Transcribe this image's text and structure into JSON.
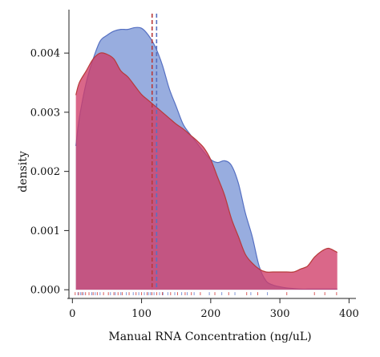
{
  "chart_data": {
    "type": "area",
    "title": "",
    "xlabel": "Manual RNA Concentration (ng/uL)",
    "ylabel": "density",
    "xlim": [
      -5,
      410
    ],
    "ylim": [
      -0.00012,
      0.00468
    ],
    "x_ticks": [
      0,
      100,
      200,
      300,
      400
    ],
    "x_tick_labels": [
      "0",
      "100",
      "200",
      "300",
      "400"
    ],
    "y_ticks": [
      0.0,
      0.001,
      0.002,
      0.003,
      0.004
    ],
    "y_tick_labels": [
      "0.000",
      "0.001",
      "0.002",
      "0.003",
      "0.004"
    ],
    "grid": false,
    "legend": "none",
    "series": [
      {
        "color_fill": "#8fa6dc",
        "color_line": "#5670c2",
        "x": [
          5,
          10,
          20,
          30,
          40,
          50,
          60,
          70,
          80,
          90,
          100,
          110,
          120,
          130,
          140,
          150,
          160,
          170,
          180,
          190,
          200,
          210,
          220,
          230,
          240,
          250,
          260,
          270,
          280,
          290,
          300,
          310,
          320,
          330,
          340,
          350,
          360,
          370,
          380,
          383
        ],
        "y": [
          0.00243,
          0.0029,
          0.0035,
          0.0039,
          0.0042,
          0.0043,
          0.00437,
          0.0044,
          0.0044,
          0.00443,
          0.00442,
          0.0043,
          0.0041,
          0.0038,
          0.0034,
          0.0031,
          0.0028,
          0.00263,
          0.00248,
          0.00233,
          0.0022,
          0.00215,
          0.00218,
          0.0021,
          0.0018,
          0.0013,
          0.0009,
          0.0004,
          0.00015,
          8e-05,
          5e-05,
          3e-05,
          2e-05,
          1e-05,
          1e-05,
          1e-05,
          1e-05,
          1e-05,
          1e-05,
          1e-05
        ],
        "mean": 120
      },
      {
        "color_fill": "#d03c68",
        "color_line": "#b83a3a",
        "x": [
          5,
          10,
          20,
          30,
          40,
          50,
          60,
          70,
          80,
          90,
          100,
          110,
          120,
          130,
          140,
          150,
          160,
          170,
          180,
          190,
          200,
          210,
          220,
          230,
          240,
          250,
          260,
          270,
          280,
          290,
          300,
          310,
          320,
          330,
          340,
          350,
          360,
          370,
          380,
          383
        ],
        "y": [
          0.00329,
          0.0035,
          0.0037,
          0.0039,
          0.004,
          0.00398,
          0.0039,
          0.0037,
          0.0036,
          0.00345,
          0.0033,
          0.0032,
          0.0031,
          0.003,
          0.0029,
          0.0028,
          0.00272,
          0.00262,
          0.00252,
          0.0024,
          0.0022,
          0.0019,
          0.0016,
          0.0012,
          0.0009,
          0.0006,
          0.00045,
          0.00035,
          0.0003,
          0.0003,
          0.0003,
          0.0003,
          0.0003,
          0.00035,
          0.0004,
          0.00055,
          0.00065,
          0.0007,
          0.00065,
          0.00063
        ],
        "mean": 117
      }
    ],
    "rug": {
      "blue": [
        8,
        12,
        16,
        28,
        33,
        40,
        55,
        62,
        70,
        78,
        88,
        96,
        104,
        110,
        113,
        118,
        126,
        131,
        138,
        148,
        158,
        166,
        176,
        198,
        216,
        235,
        258,
        282
      ],
      "red": [
        4,
        9,
        14,
        19,
        24,
        30,
        36,
        45,
        52,
        60,
        66,
        72,
        82,
        92,
        100,
        108,
        115,
        122,
        130,
        142,
        152,
        163,
        172,
        185,
        206,
        226,
        252,
        268,
        310,
        350,
        365,
        382
      ]
    }
  }
}
